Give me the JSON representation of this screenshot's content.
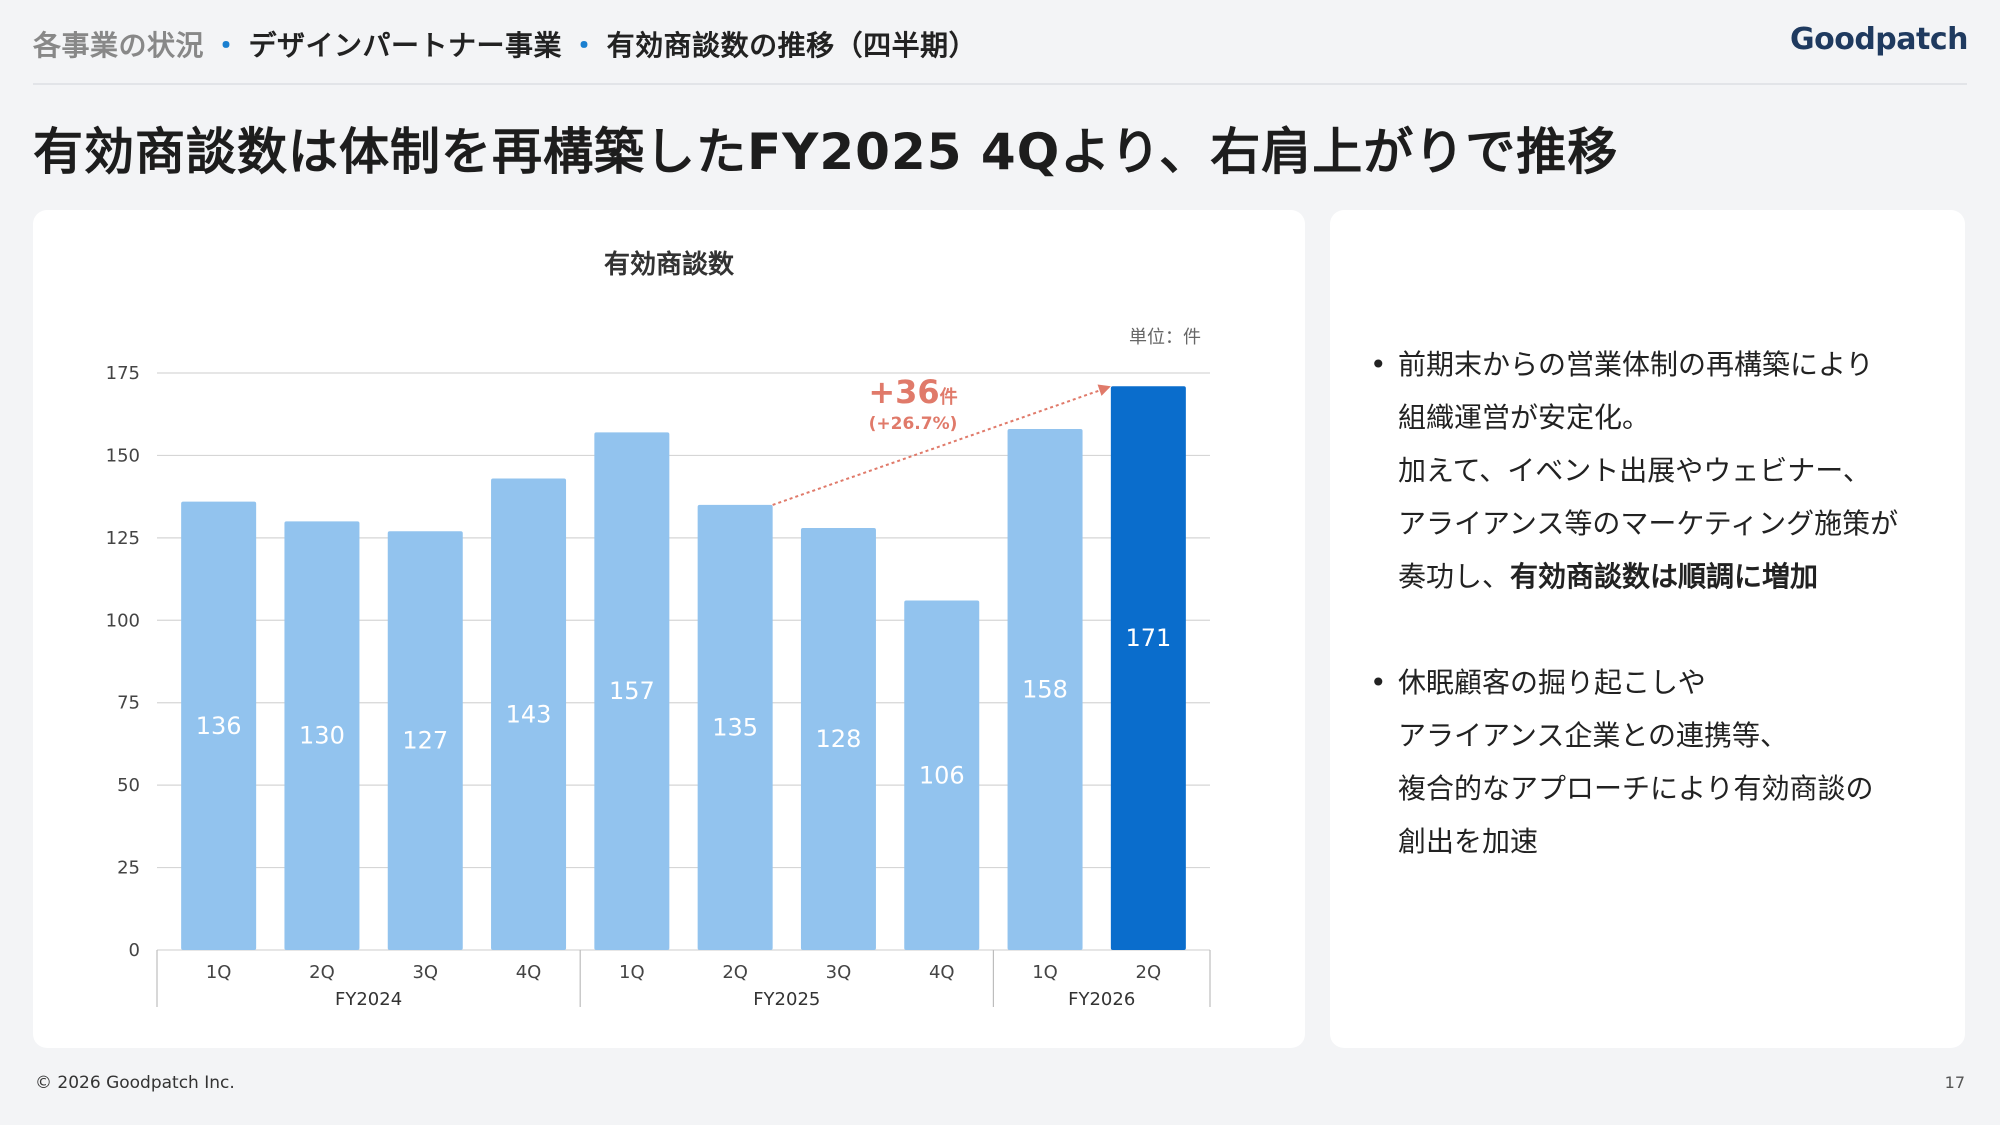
{
  "header": {
    "breadcrumb": [
      "各事業の状況",
      "デザインパートナー事業",
      "有効商談数の推移（四半期）"
    ],
    "breadcrumb_sep": "・",
    "logo": "Goodpatch"
  },
  "headline": "有効商談数は体制を再構築したFY2025 4Qより、右肩上がりで推移",
  "chart_data": {
    "type": "bar",
    "title": "有効商談数",
    "unit_label": "単位：件",
    "categories": [
      "1Q",
      "2Q",
      "3Q",
      "4Q",
      "1Q",
      "2Q",
      "3Q",
      "4Q",
      "1Q",
      "2Q"
    ],
    "groups": [
      {
        "label": "FY2024",
        "count": 4
      },
      {
        "label": "FY2025",
        "count": 4
      },
      {
        "label": "FY2026",
        "count": 2
      }
    ],
    "values": [
      136,
      130,
      127,
      143,
      157,
      135,
      128,
      106,
      158,
      171
    ],
    "ylim": [
      0,
      175
    ],
    "yticks": [
      0,
      25,
      50,
      75,
      100,
      125,
      150,
      175
    ],
    "highlight_index": 9,
    "colors": {
      "bar": "#92c3ee",
      "highlight": "#0a6dcc",
      "annotation": "#e07a6a",
      "grid": "#d6d6d6"
    },
    "annotation": {
      "from_index": 5,
      "to_index": 9,
      "main": "+36",
      "unit": "件",
      "sub": "(+26.7%)"
    }
  },
  "side": {
    "bullets": [
      {
        "lines": [
          "前期末からの営業体制の再構築により",
          "組織運営が安定化。",
          "加えて、イベント出展やウェビナー、",
          "アライアンス等のマーケティング施策が"
        ],
        "last_prefix": "奏功し、",
        "last_bold": "有効商談数は順調に増加"
      },
      {
        "lines": [
          "休眠顧客の掘り起こしや",
          "アライアンス企業との連携等、",
          "複合的なアプローチにより有効商談の",
          "創出を加速"
        ],
        "last_prefix": "",
        "last_bold": ""
      }
    ]
  },
  "footer": {
    "copyright": "© 2026 Goodpatch Inc.",
    "page": "17"
  }
}
